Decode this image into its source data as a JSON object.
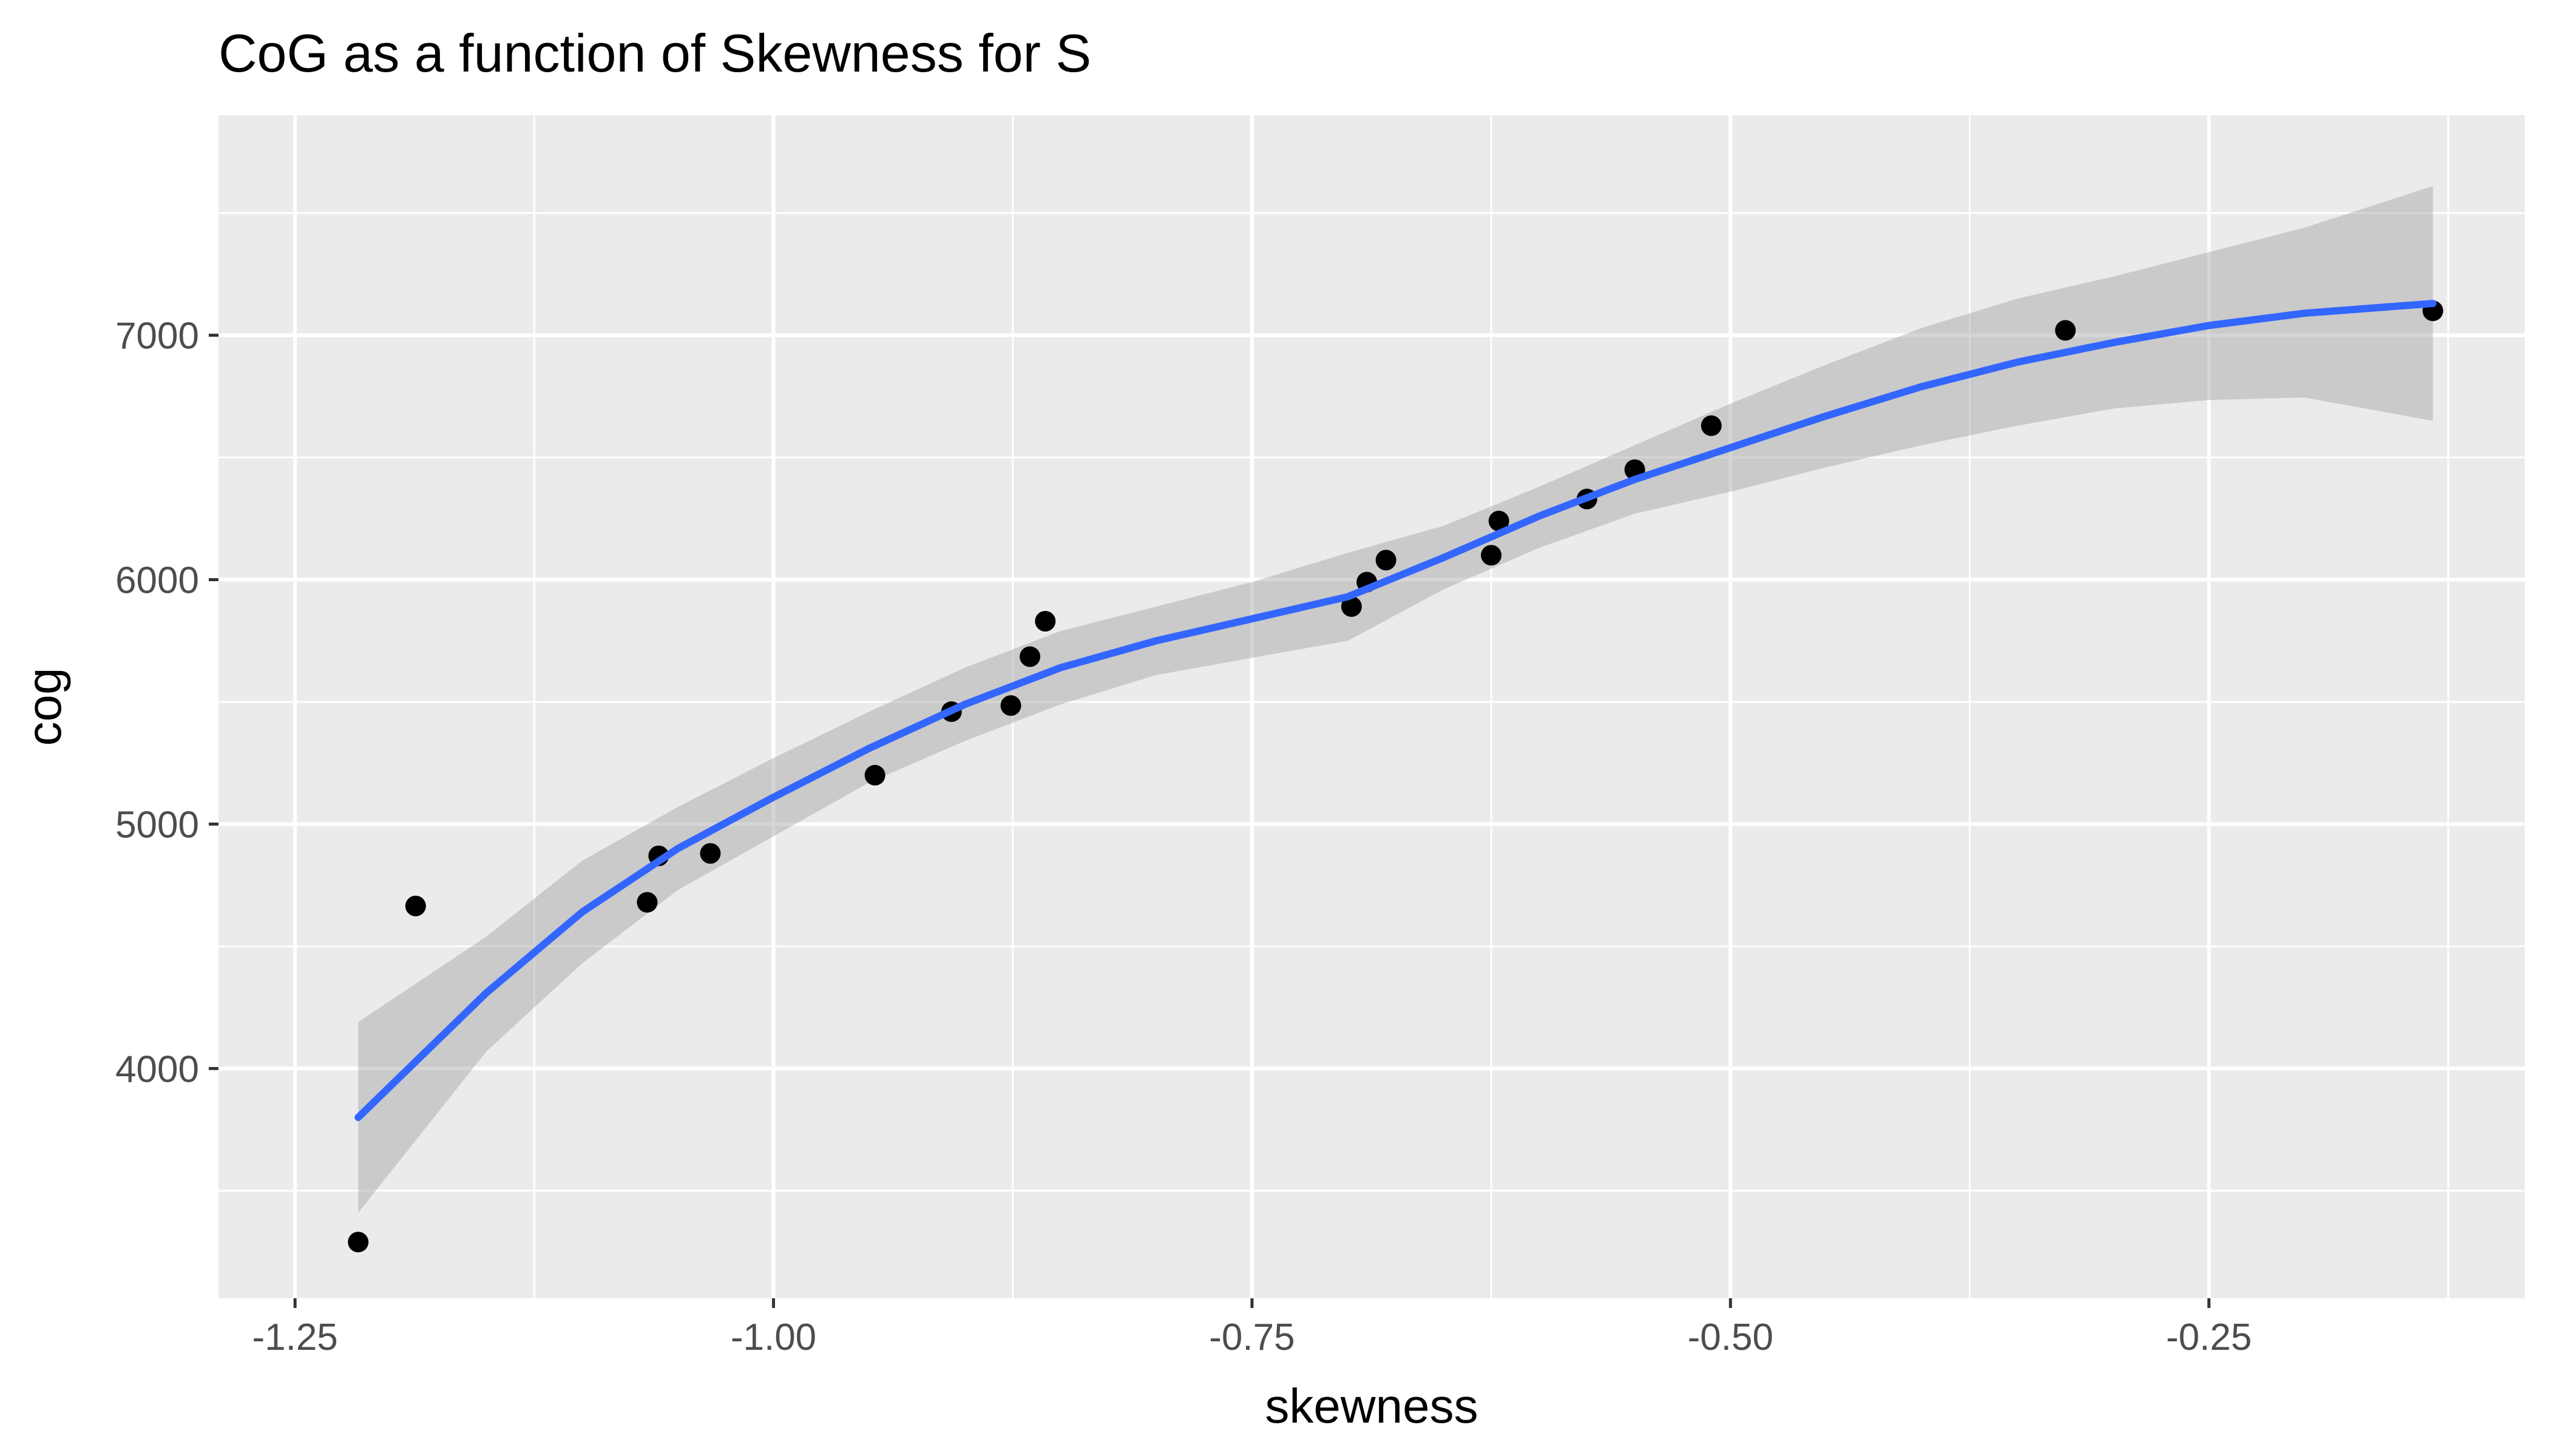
{
  "chart_data": {
    "type": "scatter",
    "title": "CoG as a function of Skewness for S",
    "xlabel": "skewness",
    "ylabel": "cog",
    "xlim": [
      -1.29,
      -0.085
    ],
    "ylim": [
      3060,
      7900
    ],
    "x_ticks": [
      -1.25,
      -1.0,
      -0.75,
      -0.5,
      -0.25
    ],
    "x_tick_labels": [
      "-1.25",
      "-1.00",
      "-0.75",
      "-0.50",
      "-0.25"
    ],
    "y_ticks": [
      4000,
      5000,
      6000,
      7000
    ],
    "y_tick_labels": [
      "4000",
      "5000",
      "6000",
      "7000"
    ],
    "grid": true,
    "panel_background": "#ebebeb",
    "point_color": "#000000",
    "smooth_color": "#3366ff",
    "band_color": "#999999",
    "points": [
      {
        "x": -1.217,
        "y": 3290
      },
      {
        "x": -1.187,
        "y": 4665
      },
      {
        "x": -1.066,
        "y": 4680
      },
      {
        "x": -1.06,
        "y": 4870
      },
      {
        "x": -1.033,
        "y": 4880
      },
      {
        "x": -0.947,
        "y": 5200
      },
      {
        "x": -0.907,
        "y": 5460
      },
      {
        "x": -0.876,
        "y": 5485
      },
      {
        "x": -0.866,
        "y": 5685
      },
      {
        "x": -0.858,
        "y": 5830
      },
      {
        "x": -0.698,
        "y": 5890
      },
      {
        "x": -0.69,
        "y": 5990
      },
      {
        "x": -0.68,
        "y": 6080
      },
      {
        "x": -0.625,
        "y": 6100
      },
      {
        "x": -0.621,
        "y": 6240
      },
      {
        "x": -0.575,
        "y": 6330
      },
      {
        "x": -0.55,
        "y": 6450
      },
      {
        "x": -0.51,
        "y": 6630
      },
      {
        "x": -0.325,
        "y": 7020
      },
      {
        "x": -0.133,
        "y": 7100
      }
    ],
    "smooth": {
      "x": [
        -1.217,
        -1.15,
        -1.1,
        -1.05,
        -1.0,
        -0.95,
        -0.9,
        -0.85,
        -0.8,
        -0.75,
        -0.7,
        -0.65,
        -0.6,
        -0.55,
        -0.5,
        -0.45,
        -0.4,
        -0.35,
        -0.3,
        -0.25,
        -0.2,
        -0.133
      ],
      "y": [
        3800,
        4310,
        4640,
        4900,
        5110,
        5310,
        5490,
        5640,
        5750,
        5840,
        5930,
        6090,
        6260,
        6410,
        6540,
        6670,
        6790,
        6890,
        6970,
        7040,
        7090,
        7130
      ],
      "lower": [
        3410,
        4070,
        4430,
        4730,
        4950,
        5170,
        5340,
        5490,
        5610,
        5680,
        5750,
        5960,
        6130,
        6270,
        6360,
        6460,
        6550,
        6630,
        6700,
        6735,
        6745,
        6650
      ],
      "upper": [
        4190,
        4540,
        4850,
        5070,
        5270,
        5460,
        5640,
        5790,
        5890,
        5990,
        6110,
        6220,
        6380,
        6550,
        6720,
        6880,
        7030,
        7150,
        7240,
        7340,
        7440,
        7610
      ]
    }
  }
}
